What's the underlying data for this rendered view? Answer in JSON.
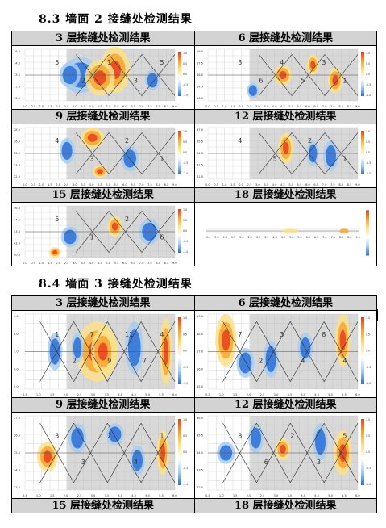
{
  "sections": [
    {
      "title": "8.3 墙面 2 接缝处检测结果",
      "cells": [
        {
          "label": "3 层接缝处检测结果",
          "numbers": [
            "5",
            "2",
            "1",
            "3",
            "5"
          ],
          "yticks": [
            "16.0",
            "14.5",
            "13.0",
            "11.5",
            "10.0"
          ]
        },
        {
          "label": "6 层接缝处检测结果",
          "numbers": [
            "3",
            "6",
            "4",
            "5",
            "3",
            "1"
          ],
          "yticks": [
            "19.0",
            "17.5",
            "16.0",
            "14.5",
            "13.0"
          ]
        },
        {
          "label": "9 层接缝处检测结果",
          "numbers": [
            "4",
            "3",
            "2",
            "1"
          ],
          "yticks": [
            "28.0",
            "26.5",
            "25.0",
            "23.5",
            "22.0"
          ]
        },
        {
          "label": "12 层接缝处检测结果",
          "numbers": [
            "4",
            "5",
            "2",
            "1"
          ],
          "yticks": [
            "37.0",
            "35.5",
            "34.0",
            "32.5",
            "31.0"
          ]
        },
        {
          "label": "15 层接缝处检测结果",
          "numbers": [
            "5",
            "1",
            "2",
            "6"
          ],
          "yticks": [
            "46.0",
            "44.5",
            "43.0",
            "41.5",
            "40.0"
          ]
        },
        {
          "label": "18 层接缝处检测结果",
          "numbers": [],
          "yticks": []
        }
      ]
    },
    {
      "title": "8.4 墙面 3 接缝处检测结果",
      "cells": [
        {
          "label": "3 层接缝处检测结果",
          "numbers": [
            "1",
            "2",
            "7",
            "9",
            "11",
            "7",
            "4"
          ],
          "yticks": [
            "9.0",
            "8.0",
            "7.0",
            "6.0",
            "5.0"
          ]
        },
        {
          "label": "6 层接缝处检测结果",
          "numbers": [
            "7",
            "2",
            "3",
            "4",
            "8",
            "4"
          ],
          "yticks": [
            "19.0",
            "18.0",
            "17.0",
            "16.0",
            "15.0"
          ]
        },
        {
          "label": "9 层接缝处检测结果",
          "numbers": [
            "3",
            "3",
            "2",
            "4",
            "1"
          ],
          "yticks": [
            "27.5",
            "26.5",
            "25.5",
            "24.5",
            "23.5"
          ]
        },
        {
          "label": "12 层接缝处检测结果",
          "numbers": [
            "8",
            "6",
            "2",
            "3",
            "5"
          ],
          "yticks": [
            "36.5",
            "35.5",
            "34.5",
            "33.5",
            "32.5"
          ]
        },
        {
          "label": "15 层接缝处检测结果",
          "numbers": [],
          "yticks": []
        },
        {
          "label": "18 层接缝处检测结果",
          "numbers": [],
          "yticks": []
        }
      ]
    }
  ],
  "xticks_a": [
    "0.0",
    "0.5",
    "1.0",
    "1.5",
    "2.0",
    "2.5",
    "3.0",
    "3.5",
    "4.0",
    "4.5",
    "5.0",
    "5.5",
    "6.0",
    "6.5",
    "7.0",
    "7.5",
    "8.0",
    "8.5",
    "9.0"
  ],
  "xticks_b": [
    "0.5",
    "1.0",
    "1.5",
    "2.0",
    "2.5",
    "3.0",
    "3.5",
    "4.0",
    "4.5",
    "5.0",
    "5.5",
    "6.0"
  ],
  "colorbar_ticks": [
    "1.0",
    "0.5",
    "0.0",
    "-0.5",
    "-1.0"
  ],
  "colors": {
    "header_bg": "#d3d3d3",
    "plot_bg": "#d8d8d8",
    "hot": "#e8401c",
    "warm": "#f7a531",
    "mild": "#fde28a",
    "cool": "#a8cdf0",
    "cold": "#2a6fd6"
  }
}
